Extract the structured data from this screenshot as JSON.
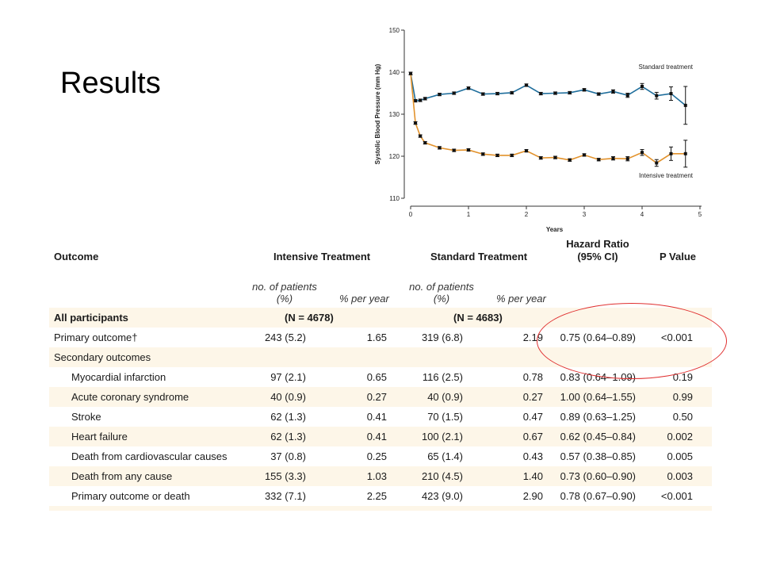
{
  "slide": {
    "title": "Results"
  },
  "chart_data": {
    "type": "line",
    "xlabel": "Years",
    "ylabel": "Systolic Blood Pressure (mm Hg)",
    "xlim": [
      0,
      5
    ],
    "ylim": [
      110,
      150
    ],
    "x_ticks": [
      0,
      1,
      2,
      3,
      4,
      5
    ],
    "y_ticks": [
      110,
      120,
      130,
      140,
      150
    ],
    "grid": false,
    "series": [
      {
        "name": "Standard treatment",
        "color": "#1f6e9c",
        "x": [
          0,
          0.083,
          0.167,
          0.25,
          0.5,
          0.75,
          1,
          1.25,
          1.5,
          1.75,
          2,
          2.25,
          2.5,
          2.75,
          3,
          3.25,
          3.5,
          3.75,
          4,
          4.25,
          4.5,
          4.75
        ],
        "values": [
          139.7,
          133.2,
          133.3,
          133.7,
          134.7,
          135.0,
          136.2,
          134.8,
          134.9,
          135.1,
          136.9,
          134.9,
          135.0,
          135.1,
          135.8,
          134.8,
          135.4,
          134.5,
          136.6,
          134.4,
          134.9,
          132.1
        ],
        "error": [
          0.3,
          0.3,
          0.3,
          0.3,
          0.3,
          0.3,
          0.3,
          0.3,
          0.3,
          0.3,
          0.3,
          0.3,
          0.3,
          0.3,
          0.3,
          0.3,
          0.4,
          0.5,
          0.7,
          0.8,
          1.6,
          4.5
        ]
      },
      {
        "name": "Intensive treatment",
        "color": "#e2922c",
        "x": [
          0,
          0.083,
          0.167,
          0.25,
          0.5,
          0.75,
          1,
          1.25,
          1.5,
          1.75,
          2,
          2.25,
          2.5,
          2.75,
          3,
          3.25,
          3.5,
          3.75,
          4,
          4.25,
          4.5,
          4.75
        ],
        "values": [
          139.7,
          127.9,
          124.8,
          123.2,
          122.0,
          121.4,
          121.5,
          120.5,
          120.2,
          120.2,
          121.3,
          119.6,
          119.7,
          119.1,
          120.3,
          119.2,
          119.5,
          119.4,
          120.9,
          118.4,
          120.6,
          120.6
        ],
        "error": [
          0.3,
          0.3,
          0.3,
          0.3,
          0.3,
          0.3,
          0.3,
          0.3,
          0.3,
          0.3,
          0.3,
          0.3,
          0.3,
          0.3,
          0.3,
          0.3,
          0.4,
          0.5,
          0.7,
          0.8,
          1.6,
          3.2
        ]
      }
    ]
  },
  "table": {
    "headers": {
      "outcome": "Outcome",
      "intensive": "Intensive Treatment",
      "standard": "Standard Treatment",
      "hr_line1": "Hazard Ratio",
      "hr_line2": "(95% CI)",
      "p": "P Value"
    },
    "subheaders": {
      "n_line1": "no. of patients",
      "n_line2": "(%)",
      "rate": "% per year"
    },
    "all_participants": {
      "label": "All participants",
      "intensive_n": "(N = 4678)",
      "standard_n": "(N = 4683)"
    },
    "primary": {
      "label": "Primary outcome†",
      "int_n": "243 (5.2)",
      "int_r": "1.65",
      "std_n": "319 (6.8)",
      "std_r": "2.19",
      "hr": "0.75 (0.64–0.89)",
      "p": "<0.001"
    },
    "secondary_label": "Secondary outcomes",
    "secondary": [
      {
        "label": "Myocardial infarction",
        "int_n": "97 (2.1)",
        "int_r": "0.65",
        "std_n": "116 (2.5)",
        "std_r": "0.78",
        "hr": "0.83 (0.64–1.09)",
        "p": "0.19"
      },
      {
        "label": "Acute coronary syndrome",
        "int_n": "40 (0.9)",
        "int_r": "0.27",
        "std_n": "40 (0.9)",
        "std_r": "0.27",
        "hr": "1.00 (0.64–1.55)",
        "p": "0.99"
      },
      {
        "label": "Stroke",
        "int_n": "62 (1.3)",
        "int_r": "0.41",
        "std_n": "70 (1.5)",
        "std_r": "0.47",
        "hr": "0.89 (0.63–1.25)",
        "p": "0.50"
      },
      {
        "label": "Heart failure",
        "int_n": "62 (1.3)",
        "int_r": "0.41",
        "std_n": "100 (2.1)",
        "std_r": "0.67",
        "hr": "0.62 (0.45–0.84)",
        "p": "0.002"
      },
      {
        "label": "Death from cardiovascular causes",
        "int_n": "37 (0.8)",
        "int_r": "0.25",
        "std_n": "65 (1.4)",
        "std_r": "0.43",
        "hr": "0.57 (0.38–0.85)",
        "p": "0.005"
      },
      {
        "label": "Death from any cause",
        "int_n": "155 (3.3)",
        "int_r": "1.03",
        "std_n": "210 (4.5)",
        "std_r": "1.40",
        "hr": "0.73 (0.60–0.90)",
        "p": "0.003"
      },
      {
        "label": "Primary outcome or death",
        "int_n": "332 (7.1)",
        "int_r": "2.25",
        "std_n": "423 (9.0)",
        "std_r": "2.90",
        "hr": "0.78 (0.67–0.90)",
        "p": "<0.001"
      }
    ],
    "shade_color": "#fdf6e8",
    "highlight_color": "#e03030"
  }
}
